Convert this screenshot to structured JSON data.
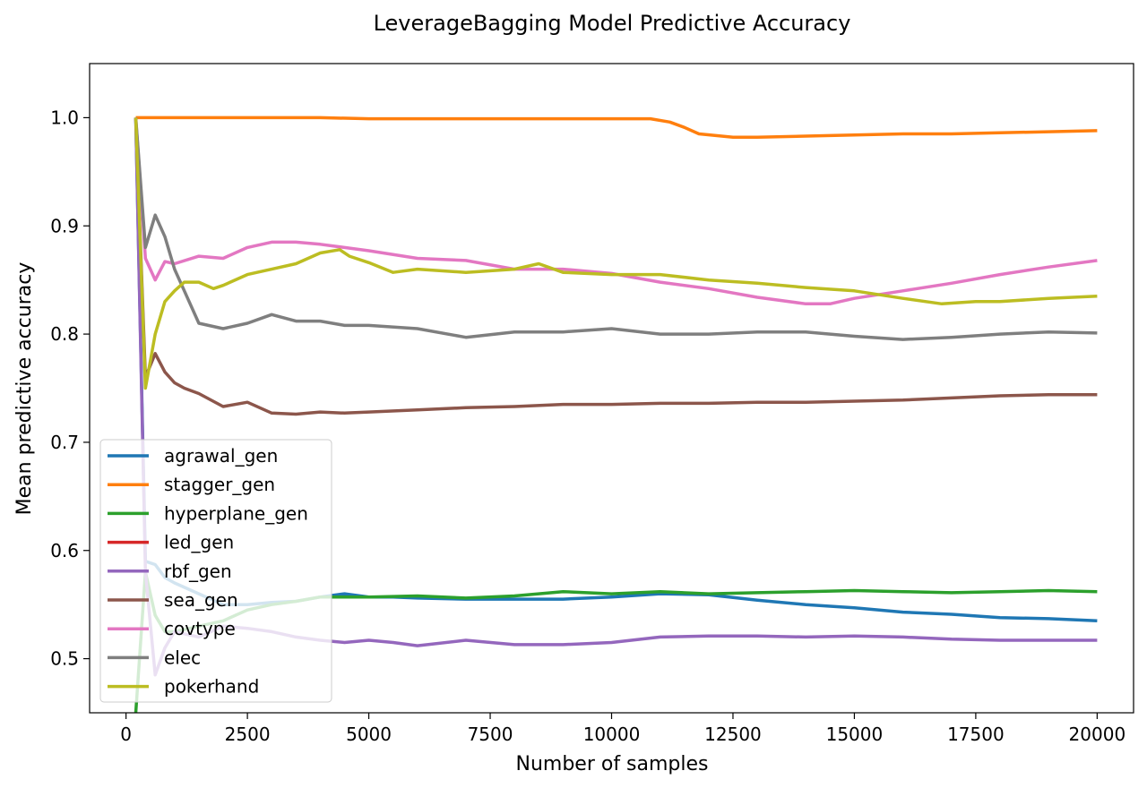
{
  "chart_data": {
    "type": "line",
    "title": "LeverageBagging Model Predictive Accuracy",
    "xlabel": "Number of samples",
    "ylabel": "Mean predictive accuracy",
    "xlim": [
      -750,
      20750
    ],
    "ylim": [
      0.45,
      1.05
    ],
    "x_ticks": [
      0,
      2500,
      5000,
      7500,
      10000,
      12500,
      15000,
      17500,
      20000
    ],
    "y_ticks": [
      0.5,
      0.6,
      0.7,
      0.8,
      0.9,
      1.0
    ],
    "x_tick_labels": [
      "0",
      "2500",
      "5000",
      "7500",
      "10000",
      "12500",
      "15000",
      "17500",
      "20000"
    ],
    "y_tick_labels": [
      "0.5",
      "0.6",
      "0.7",
      "0.8",
      "0.9",
      "1.0"
    ],
    "grid": false,
    "legend_position": "lower-left",
    "series": [
      {
        "name": "agrawal_gen",
        "color": "#1f77b4",
        "x": [
          200,
          400,
          600,
          800,
          1000,
          1500,
          2000,
          2500,
          3000,
          3500,
          4000,
          4500,
          5000,
          5500,
          6000,
          7000,
          8000,
          9000,
          10000,
          11000,
          12000,
          13000,
          14000,
          15000,
          16000,
          17000,
          18000,
          19000,
          20000
        ],
        "y": [
          1.0,
          0.59,
          0.587,
          0.575,
          0.57,
          0.56,
          0.55,
          0.55,
          0.552,
          0.553,
          0.557,
          0.56,
          0.557,
          0.557,
          0.556,
          0.555,
          0.555,
          0.555,
          0.557,
          0.56,
          0.559,
          0.554,
          0.55,
          0.547,
          0.543,
          0.541,
          0.538,
          0.537,
          0.535
        ]
      },
      {
        "name": "stagger_gen",
        "color": "#ff7f0e",
        "x": [
          200,
          1000,
          4000,
          5000,
          8000,
          10000,
          10800,
          11200,
          11500,
          11800,
          12500,
          13000,
          14000,
          15000,
          16000,
          17000,
          18000,
          19000,
          20000
        ],
        "y": [
          1.0,
          1.0,
          1.0,
          0.999,
          0.999,
          0.999,
          0.999,
          0.996,
          0.991,
          0.985,
          0.982,
          0.982,
          0.983,
          0.984,
          0.985,
          0.985,
          0.986,
          0.987,
          0.988
        ]
      },
      {
        "name": "hyperplane_gen",
        "color": "#2ca02c",
        "x": [
          200,
          400,
          600,
          800,
          1000,
          1500,
          2000,
          2500,
          3000,
          3500,
          4000,
          4500,
          5000,
          6000,
          7000,
          8000,
          9000,
          10000,
          11000,
          12000,
          13000,
          14000,
          15000,
          16000,
          17000,
          18000,
          19000,
          20000
        ],
        "y": [
          0.45,
          0.58,
          0.54,
          0.525,
          0.525,
          0.53,
          0.535,
          0.545,
          0.55,
          0.553,
          0.557,
          0.557,
          0.557,
          0.558,
          0.556,
          0.558,
          0.562,
          0.56,
          0.562,
          0.56,
          0.561,
          0.562,
          0.563,
          0.562,
          0.561,
          0.562,
          0.563,
          0.562
        ]
      },
      {
        "name": "led_gen",
        "color": "#d62728",
        "x": [],
        "y": []
      },
      {
        "name": "rbf_gen",
        "color": "#9467bd",
        "x": [
          200,
          400,
          600,
          800,
          1000,
          1500,
          2000,
          2500,
          3000,
          3500,
          4000,
          4500,
          5000,
          5500,
          6000,
          7000,
          8000,
          9000,
          10000,
          11000,
          12000,
          13000,
          14000,
          15000,
          16000,
          17000,
          18000,
          19000,
          20000
        ],
        "y": [
          1.0,
          0.58,
          0.485,
          0.51,
          0.525,
          0.52,
          0.53,
          0.528,
          0.525,
          0.52,
          0.517,
          0.515,
          0.517,
          0.515,
          0.512,
          0.517,
          0.513,
          0.513,
          0.515,
          0.52,
          0.521,
          0.521,
          0.52,
          0.521,
          0.52,
          0.518,
          0.517,
          0.517,
          0.517
        ]
      },
      {
        "name": "sea_gen",
        "color": "#8c564b",
        "x": [
          200,
          400,
          600,
          800,
          1000,
          1200,
          1500,
          2000,
          2500,
          3000,
          3500,
          4000,
          4500,
          5000,
          6000,
          7000,
          8000,
          9000,
          10000,
          11000,
          12000,
          13000,
          14000,
          15000,
          16000,
          17000,
          18000,
          19000,
          20000
        ],
        "y": [
          1.0,
          0.76,
          0.782,
          0.765,
          0.755,
          0.75,
          0.745,
          0.733,
          0.737,
          0.727,
          0.726,
          0.728,
          0.727,
          0.728,
          0.73,
          0.732,
          0.733,
          0.735,
          0.735,
          0.736,
          0.736,
          0.737,
          0.737,
          0.738,
          0.739,
          0.741,
          0.743,
          0.744,
          0.744
        ]
      },
      {
        "name": "covtype",
        "color": "#e377c2",
        "x": [
          200,
          400,
          600,
          800,
          1000,
          1500,
          2000,
          2500,
          3000,
          3500,
          4000,
          4500,
          5000,
          6000,
          7000,
          8000,
          9000,
          10000,
          11000,
          12000,
          13000,
          14000,
          14500,
          15000,
          16000,
          17000,
          18000,
          19000,
          20000
        ],
        "y": [
          1.0,
          0.87,
          0.85,
          0.867,
          0.865,
          0.872,
          0.87,
          0.88,
          0.885,
          0.885,
          0.883,
          0.88,
          0.877,
          0.87,
          0.868,
          0.86,
          0.86,
          0.856,
          0.848,
          0.842,
          0.834,
          0.828,
          0.828,
          0.833,
          0.84,
          0.847,
          0.855,
          0.862,
          0.868
        ]
      },
      {
        "name": "elec",
        "color": "#7f7f7f",
        "x": [
          200,
          400,
          600,
          800,
          1000,
          1200,
          1500,
          2000,
          2500,
          3000,
          3500,
          4000,
          4500,
          5000,
          6000,
          7000,
          8000,
          9000,
          10000,
          11000,
          12000,
          13000,
          14000,
          15000,
          16000,
          17000,
          18000,
          19000,
          20000
        ],
        "y": [
          1.0,
          0.88,
          0.91,
          0.89,
          0.86,
          0.84,
          0.81,
          0.805,
          0.81,
          0.818,
          0.812,
          0.812,
          0.808,
          0.808,
          0.805,
          0.797,
          0.802,
          0.802,
          0.805,
          0.8,
          0.8,
          0.802,
          0.802,
          0.798,
          0.795,
          0.797,
          0.8,
          0.802,
          0.801
        ]
      },
      {
        "name": "pokerhand",
        "color": "#bcbd22",
        "x": [
          200,
          400,
          600,
          800,
          1000,
          1200,
          1500,
          1800,
          2000,
          2500,
          3000,
          3500,
          4000,
          4400,
          4600,
          5000,
          5500,
          6000,
          7000,
          8000,
          8500,
          9000,
          10000,
          11000,
          12000,
          13000,
          14000,
          15000,
          16000,
          16800,
          17500,
          18000,
          19000,
          20000
        ],
        "y": [
          1.0,
          0.75,
          0.8,
          0.83,
          0.84,
          0.848,
          0.848,
          0.842,
          0.845,
          0.855,
          0.86,
          0.865,
          0.875,
          0.878,
          0.872,
          0.866,
          0.857,
          0.86,
          0.857,
          0.86,
          0.865,
          0.857,
          0.855,
          0.855,
          0.85,
          0.847,
          0.843,
          0.84,
          0.833,
          0.828,
          0.83,
          0.83,
          0.833,
          0.835
        ]
      }
    ]
  }
}
